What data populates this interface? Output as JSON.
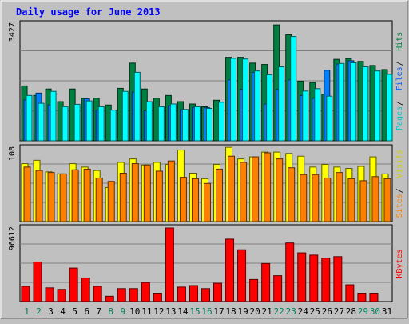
{
  "chart_data": {
    "type": "bar",
    "title": "Daily usage for June 2013",
    "days": [
      "1",
      "2",
      "3",
      "4",
      "5",
      "6",
      "7",
      "8",
      "9",
      "10",
      "11",
      "12",
      "13",
      "14",
      "15",
      "16",
      "17",
      "18",
      "19",
      "20",
      "21",
      "22",
      "23",
      "24",
      "25",
      "26",
      "27",
      "28",
      "29",
      "30",
      "31"
    ],
    "weekend_days": [
      "1",
      "2",
      "8",
      "9",
      "15",
      "16",
      "22",
      "23",
      "29",
      "30"
    ],
    "panels": [
      {
        "id": "hits",
        "max_label": "3427",
        "ylim": [
          0,
          3427
        ],
        "series": [
          {
            "name": "Hits",
            "color": "#008040",
            "values": [
              1610,
              1330,
              1520,
              1150,
              1520,
              1250,
              1250,
              1050,
              1540,
              2280,
              1520,
              1250,
              1330,
              1150,
              1080,
              1000,
              1190,
              2450,
              2450,
              2280,
              2240,
              3400,
              3110,
              1750,
              1710,
              1370,
              2390,
              2410,
              2330,
              2210,
              2090
            ]
          },
          {
            "name": "Files",
            "color": "#0080ff",
            "values": [
              1200,
              1400,
              1050,
              0,
              0,
              1230,
              900,
              0,
              0,
              1430,
              880,
              0,
              1030,
              910,
              980,
              970,
              0,
              1790,
              1510,
              2010,
              1080,
              1510,
              1790,
              1330,
              1250,
              2070,
              2250,
              2350,
              0,
              0,
              0
            ]
          },
          {
            "name": "Pages",
            "color": "#00ffff",
            "values": [
              1330,
              1100,
              1450,
              1000,
              1070,
              1170,
              1000,
              900,
              1450,
              2010,
              1150,
              1000,
              1080,
              920,
              1000,
              950,
              1130,
              2420,
              2400,
              2050,
              1940,
              2170,
              3060,
              1460,
              1530,
              1310,
              2270,
              2290,
              2170,
              2050,
              1950
            ]
          }
        ],
        "legend": [
          "Pages",
          "Files",
          "Hits"
        ]
      },
      {
        "id": "visits",
        "max_label": "108",
        "ylim": [
          0,
          108
        ],
        "series": [
          {
            "name": "Visits",
            "color": "#ffff00",
            "values": [
              85,
              90,
              73,
              70,
              85,
              80,
              75,
              50,
              87,
              92,
              83,
              87,
              84,
              105,
              71,
              63,
              84,
              109,
              92,
              95,
              102,
              102,
              100,
              96,
              80,
              84,
              80,
              78,
              81,
              95,
              70
            ]
          },
          {
            "name": "Sites",
            "color": "#ff8000",
            "values": [
              80,
              75,
              72,
              70,
              76,
              77,
              64,
              59,
              71,
              85,
              83,
              74,
              89,
              65,
              63,
              56,
              77,
              96,
              87,
              95,
              101,
              92,
              79,
              69,
              69,
              64,
              72,
              63,
              60,
              66,
              63
            ]
          }
        ],
        "legend": [
          "Sites",
          "Visits"
        ]
      },
      {
        "id": "kbytes",
        "max_label": "96612",
        "ylim": [
          0,
          96612
        ],
        "series": [
          {
            "name": "KBytes",
            "color": "#ff0000",
            "values": [
              20000,
              52000,
              18000,
              16000,
              44000,
              31000,
              20000,
              7000,
              17000,
              17000,
              25000,
              11000,
              96612,
              19000,
              21000,
              17000,
              24000,
              82000,
              68000,
              29000,
              50000,
              34000,
              77000,
              64000,
              61000,
              57000,
              59000,
              22000,
              11000,
              11000,
              0
            ]
          }
        ],
        "legend": [
          "KBytes"
        ]
      }
    ],
    "grid": true
  },
  "colors": {
    "background": "#c0c0c0",
    "plot_background": "#c0c0c0",
    "title": "#0000ff",
    "weekday_label": "#000000",
    "weekend_label": "#00805c",
    "separator": "#000000",
    "frame_dark": "#808080",
    "frame_light": "#ffffff"
  }
}
